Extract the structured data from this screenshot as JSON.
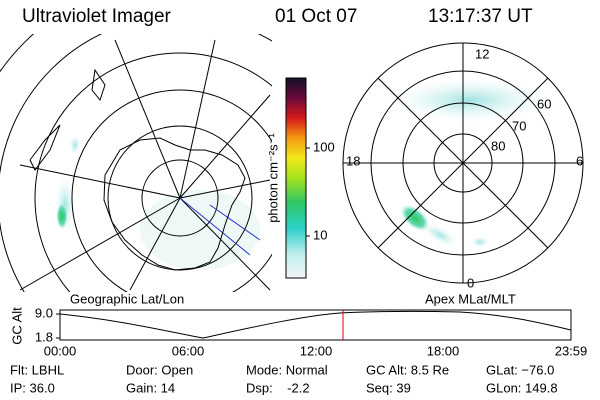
{
  "header": {
    "instrument": "Ultraviolet Imager",
    "date": "01 Oct 07",
    "time": "13:17:37 UT"
  },
  "geographic": {
    "label": "Geographic Lat/Lon"
  },
  "colorbar": {
    "label": "photon cm⁻²s⁻¹",
    "ticks": [
      "100",
      "10"
    ]
  },
  "magnetic": {
    "label": "Apex MLat/MLT",
    "mlt": [
      "12",
      "18",
      "6",
      "0"
    ],
    "mlat": [
      "60",
      "70",
      "80"
    ]
  },
  "orbit": {
    "ylabel": "GC Alt",
    "yticks": [
      "9.0",
      "1.8"
    ],
    "xticks": [
      "00:00",
      "06:00",
      "12:00",
      "18:00",
      "23:59"
    ]
  },
  "status": {
    "rows": [
      [
        "Flt: LBHL",
        "Door: Open",
        "Mode: Normal",
        "GC Alt: 8.5 Re",
        "GLat: −76.0"
      ],
      [
        "IP: 36.0",
        "Gain: 14",
        "Dsp:    -2.2",
        "Seq: 39",
        "GLon: 149.8"
      ]
    ]
  }
}
